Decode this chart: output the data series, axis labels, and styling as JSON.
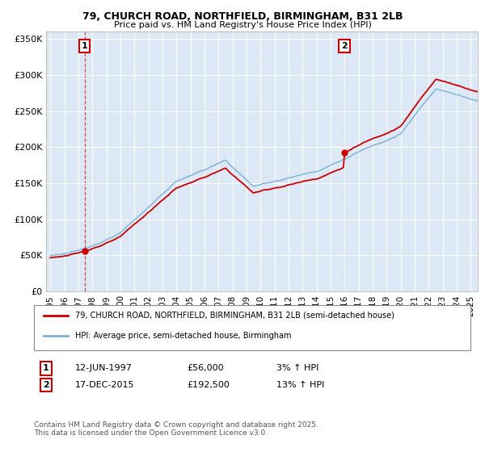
{
  "title": "79, CHURCH ROAD, NORTHFIELD, BIRMINGHAM, B31 2LB",
  "subtitle": "Price paid vs. HM Land Registry's House Price Index (HPI)",
  "ylim": [
    0,
    360000
  ],
  "xlim_start": 1994.7,
  "xlim_end": 2025.5,
  "yticks": [
    0,
    50000,
    100000,
    150000,
    200000,
    250000,
    300000,
    350000
  ],
  "ytick_labels": [
    "£0",
    "£50K",
    "£100K",
    "£150K",
    "£200K",
    "£250K",
    "£300K",
    "£350K"
  ],
  "fig_bg": "#ffffff",
  "plot_bg": "#dce8f5",
  "grid_color": "#ffffff",
  "line_color_red": "#cc0000",
  "line_color_blue": "#7ab0d8",
  "vline1_color": "#dd4444",
  "vline2_color": "#aaaacc",
  "transaction1_year": 1997.44,
  "transaction1_price": 56000,
  "transaction1_label": "1",
  "transaction2_year": 2015.96,
  "transaction2_price": 192500,
  "transaction2_label": "2",
  "legend_line1": "79, CHURCH ROAD, NORTHFIELD, BIRMINGHAM, B31 2LB (semi-detached house)",
  "legend_line2": "HPI: Average price, semi-detached house, Birmingham",
  "ann1_num": "1",
  "ann1_date": "12-JUN-1997",
  "ann1_price": "£56,000",
  "ann1_hpi": "3% ↑ HPI",
  "ann2_num": "2",
  "ann2_date": "17-DEC-2015",
  "ann2_price": "£192,500",
  "ann2_hpi": "13% ↑ HPI",
  "footer": "Contains HM Land Registry data © Crown copyright and database right 2025.\nThis data is licensed under the Open Government Licence v3.0.",
  "xtick_years": [
    1995,
    1996,
    1997,
    1998,
    1999,
    2000,
    2001,
    2002,
    2003,
    2004,
    2005,
    2006,
    2007,
    2008,
    2009,
    2010,
    2011,
    2012,
    2013,
    2014,
    2015,
    2016,
    2017,
    2018,
    2019,
    2020,
    2021,
    2022,
    2023,
    2024,
    2025
  ]
}
